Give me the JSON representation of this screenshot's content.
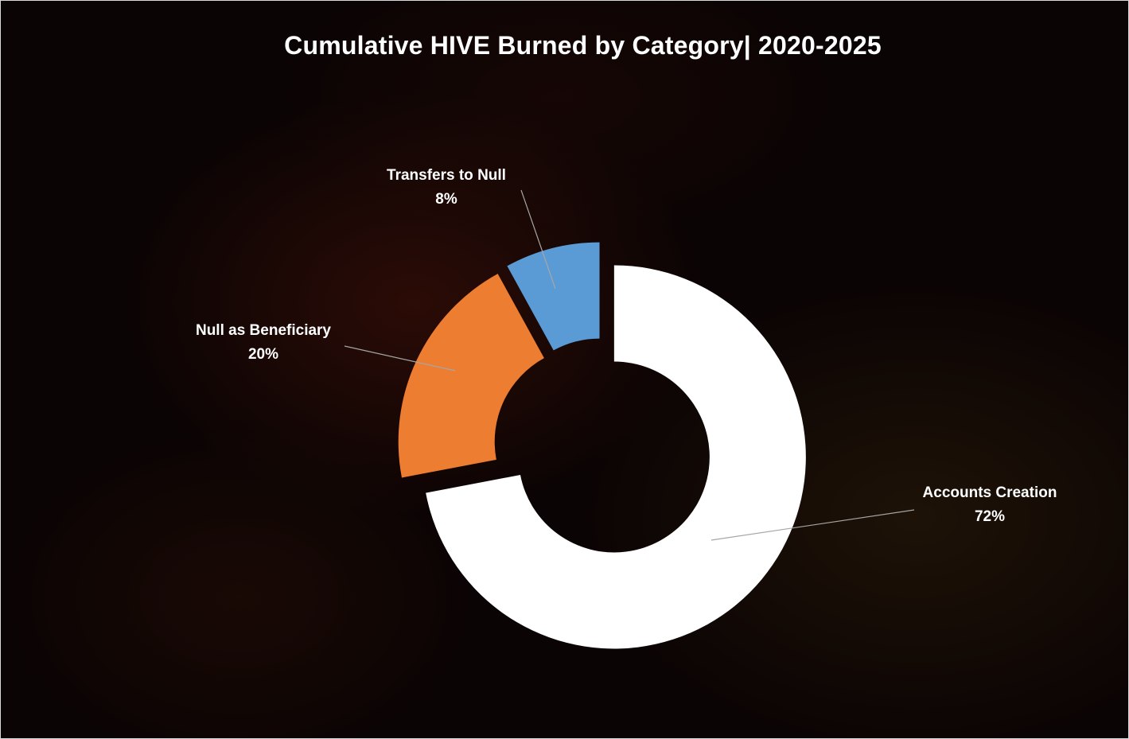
{
  "chart_data": {
    "type": "pie",
    "variant": "doughnut",
    "title": "Cumulative HIVE Burned by Category| 2020-2025",
    "slices": [
      {
        "label": "Accounts Creation",
        "value": 72,
        "value_label": "72%",
        "color": "#ffffff"
      },
      {
        "label": "Null as Beneficiary",
        "value": 20,
        "value_label": "20%",
        "color": "#ed7d31"
      },
      {
        "label": "Transfers to Null",
        "value": 8,
        "value_label": "8%",
        "color": "#5b9bd5"
      }
    ],
    "legend": "none",
    "leader_line_color": "#a6a6a6"
  }
}
